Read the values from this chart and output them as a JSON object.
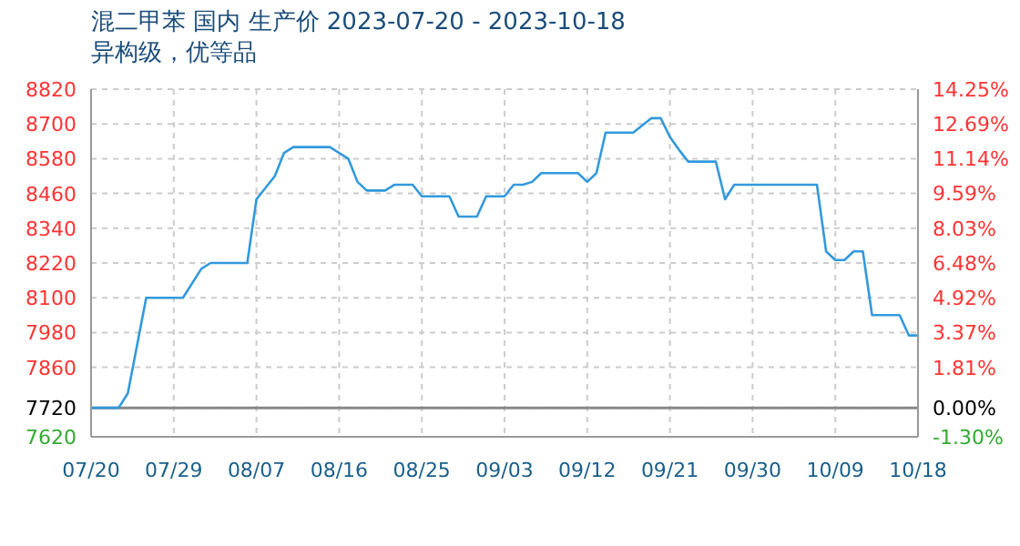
{
  "chart_data": {
    "type": "line",
    "title": "混二甲苯 国内 生产价 2023-07-20 - 2023-10-18",
    "subtitle": "异构级，优等品",
    "x": [
      "--07-20",
      "--07-23",
      "--07-24",
      "--07-26",
      "--07-30",
      "--08-01",
      "--08-02",
      "--08-06",
      "--08-07",
      "--08-08",
      "--08-09",
      "--08-10",
      "--08-11",
      "--08-15",
      "--08-16",
      "--08-17",
      "--08-18",
      "--08-19",
      "--08-21",
      "--08-22",
      "--08-24",
      "--08-25",
      "--08-28",
      "--08-29",
      "--08-31",
      "--09-01",
      "--09-03",
      "--09-04",
      "--09-05",
      "--09-06",
      "--09-07",
      "--09-11",
      "--09-12",
      "--09-13",
      "--09-14",
      "--09-17",
      "--09-18",
      "--09-19",
      "--09-20",
      "--09-21",
      "--09-22",
      "--09-23",
      "--09-26",
      "--09-27",
      "--09-28",
      "--10-07",
      "--10-08",
      "--10-09",
      "--10-10",
      "--10-11",
      "--10-12",
      "--10-13",
      "--10-16",
      "--10-17",
      "--10-18"
    ],
    "series": [
      {
        "color": "#3399dd",
        "values": [
          7720,
          7720,
          7770,
          8100,
          8100,
          8200,
          8220,
          8220,
          8440,
          8480,
          8520,
          8600,
          8620,
          8620,
          8600,
          8580,
          8500,
          8470,
          8470,
          8490,
          8490,
          8450,
          8450,
          8380,
          8380,
          8450,
          8450,
          8490,
          8490,
          8500,
          8530,
          8530,
          8500,
          8530,
          8670,
          8670,
          8695,
          8720,
          8720,
          8655,
          8610,
          8570,
          8570,
          8440,
          8490,
          8490,
          8260,
          8230,
          8230,
          8260,
          8260,
          8040,
          8040,
          7970,
          7970
        ]
      }
    ],
    "xlim": [
      "--07-20",
      "--10-18"
    ],
    "xticks": [
      {
        "value": "--07-20",
        "label": "07/20"
      },
      {
        "value": "--07-29",
        "label": "07/29"
      },
      {
        "value": "--08-07",
        "label": "08/07"
      },
      {
        "value": "--08-16",
        "label": "08/16"
      },
      {
        "value": "--08-25",
        "label": "08/25"
      },
      {
        "value": "--09-03",
        "label": "09/03"
      },
      {
        "value": "--09-12",
        "label": "09/12"
      },
      {
        "value": "--09-21",
        "label": "09/21"
      },
      {
        "value": "--09-30",
        "label": "09/30"
      },
      {
        "value": "--10-09",
        "label": "10/09"
      },
      {
        "value": "--10-18",
        "label": "10/18"
      }
    ],
    "ylim": [
      7620,
      8820
    ],
    "yticks": [
      7620,
      7720,
      7860,
      7980,
      8100,
      8220,
      8340,
      8460,
      8580,
      8700,
      8820
    ],
    "y2lim": [
      -1.3,
      14.25
    ],
    "y2ticks": [
      {
        "value": -1.3,
        "label": "-1.30%"
      },
      {
        "value": 0,
        "label": "0.00%"
      },
      {
        "value": 1.81,
        "label": "1.81%"
      },
      {
        "value": 3.37,
        "label": "3.37%"
      },
      {
        "value": 4.92,
        "label": "4.92%"
      },
      {
        "value": 6.48,
        "label": "6.48%"
      },
      {
        "value": 8.03,
        "label": "8.03%"
      },
      {
        "value": 9.59,
        "label": "9.59%"
      },
      {
        "value": 11.14,
        "label": "11.14%"
      },
      {
        "value": 12.69,
        "label": "12.69%"
      },
      {
        "value": 14.25,
        "label": "14.25%"
      }
    ],
    "ref_lines": [
      {
        "axis": "y",
        "value": 7720,
        "color": "#888888"
      }
    ],
    "grid": true,
    "legend": false,
    "marker": "none",
    "line_style": "solid"
  }
}
